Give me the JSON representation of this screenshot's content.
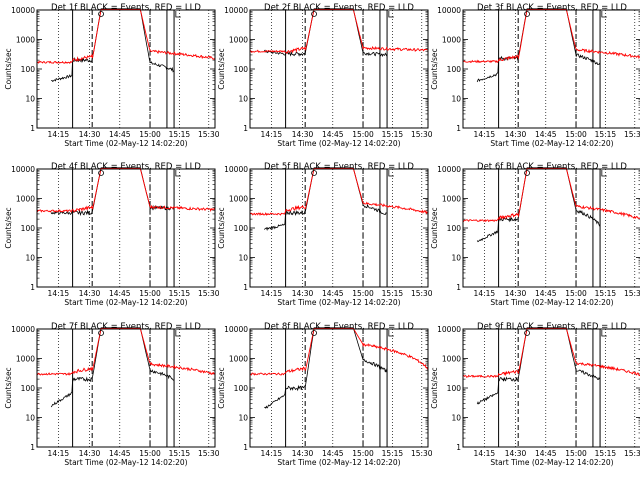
{
  "colors": {
    "events": "#000000",
    "lld": "#ff0000",
    "axis": "#000000"
  },
  "chart_data": [
    {
      "type": "line",
      "title": "Det 1f BLACK = Events, RED = LLD",
      "xlabel": "Start Time (02-May-12 14:02:20)",
      "ylabel": "Counts/sec",
      "yscale": "log",
      "ylim": [
        1,
        10000
      ],
      "xticks": [
        "14:15",
        "14:30",
        "14:45",
        "15:00",
        "15:15",
        "15:30"
      ],
      "yticks": [
        "1",
        "10",
        "100",
        "1000",
        "10000"
      ],
      "series": [
        {
          "key": "events",
          "type": "events"
        },
        {
          "key": "lld",
          "type": "lld"
        }
      ],
      "events": {
        "start": 40,
        "low": 60,
        "rise": 200,
        "high": 11000,
        "after": 160,
        "post_drop": 90
      },
      "lld": {
        "base": 170,
        "before": 200,
        "high": 10500,
        "after": 400,
        "tail": 230
      }
    },
    {
      "type": "line",
      "title": "Det 2f BLACK = Events, RED = LLD",
      "xlabel": "Start Time (02-May-12 14:02:20)",
      "ylabel": "Counts/sec",
      "yscale": "log",
      "ylim": [
        1,
        10000
      ],
      "xticks": [
        "14:15",
        "14:30",
        "14:45",
        "15:00",
        "15:15",
        "15:30"
      ],
      "yticks": [
        "1",
        "10",
        "100",
        "1000",
        "10000"
      ],
      "series": [
        {
          "key": "events",
          "type": "events"
        },
        {
          "key": "lld",
          "type": "lld"
        }
      ],
      "events": {
        "start": 400,
        "low": 320,
        "rise": 330,
        "high": 11000,
        "after": 350,
        "post_drop": 300
      },
      "lld": {
        "base": 400,
        "before": 380,
        "high": 10500,
        "after": 520,
        "tail": 430
      }
    },
    {
      "type": "line",
      "title": "Det 3f BLACK = Events, RED = LLD",
      "xlabel": "Start Time (02-May-12 14:02:20)",
      "ylabel": "Counts/sec",
      "yscale": "log",
      "ylim": [
        1,
        10000
      ],
      "xticks": [
        "14:15",
        "14:30",
        "14:45",
        "15:00",
        "15:15",
        "15:30"
      ],
      "yticks": [
        "1",
        "10",
        "100",
        "1000",
        "10000"
      ],
      "series": [
        {
          "key": "events",
          "type": "events"
        },
        {
          "key": "lld",
          "type": "lld"
        }
      ],
      "events": {
        "start": 40,
        "low": 70,
        "rise": 230,
        "high": 11000,
        "after": 300,
        "post_drop": 140
      },
      "lld": {
        "base": 180,
        "before": 200,
        "high": 10500,
        "after": 450,
        "tail": 250
      }
    },
    {
      "type": "line",
      "title": "Det 4f BLACK = Events, RED = LLD",
      "xlabel": "Start Time (02-May-12 14:02:20)",
      "ylabel": "Counts/sec",
      "yscale": "log",
      "ylim": [
        1,
        10000
      ],
      "xticks": [
        "14:15",
        "14:30",
        "14:45",
        "15:00",
        "15:15",
        "15:30"
      ],
      "yticks": [
        "1",
        "10",
        "100",
        "1000",
        "10000"
      ],
      "series": [
        {
          "key": "events",
          "type": "events"
        },
        {
          "key": "lld",
          "type": "lld"
        }
      ],
      "events": {
        "start": 330,
        "low": 320,
        "rise": 330,
        "high": 11000,
        "after": 500,
        "post_drop": 460
      },
      "lld": {
        "base": 380,
        "before": 380,
        "high": 10500,
        "after": 520,
        "tail": 420
      }
    },
    {
      "type": "line",
      "title": "Det 5f BLACK = Events, RED = LLD",
      "xlabel": "Start Time (02-May-12 14:02:20)",
      "ylabel": "Counts/sec",
      "yscale": "log",
      "ylim": [
        1,
        10000
      ],
      "xticks": [
        "14:15",
        "14:30",
        "14:45",
        "15:00",
        "15:15",
        "15:30"
      ],
      "yticks": [
        "1",
        "10",
        "100",
        "1000",
        "10000"
      ],
      "series": [
        {
          "key": "events",
          "type": "events"
        },
        {
          "key": "lld",
          "type": "lld"
        }
      ],
      "events": {
        "start": 90,
        "low": 130,
        "rise": 330,
        "high": 11000,
        "after": 600,
        "post_drop": 280
      },
      "lld": {
        "base": 300,
        "before": 400,
        "high": 10500,
        "after": 700,
        "tail": 330
      }
    },
    {
      "type": "line",
      "title": "Det 6f BLACK = Events, RED = LLD",
      "xlabel": "Start Time (02-May-12 14:02:20)",
      "ylabel": "Counts/sec",
      "yscale": "log",
      "ylim": [
        1,
        10000
      ],
      "xticks": [
        "14:15",
        "14:30",
        "14:45",
        "15:00",
        "15:15",
        "15:30"
      ],
      "yticks": [
        "1",
        "10",
        "100",
        "1000",
        "10000"
      ],
      "series": [
        {
          "key": "events",
          "type": "events"
        },
        {
          "key": "lld",
          "type": "lld"
        }
      ],
      "events": {
        "start": 35,
        "low": 80,
        "rise": 200,
        "high": 11000,
        "after": 400,
        "post_drop": 120
      },
      "lld": {
        "base": 180,
        "before": 220,
        "high": 10500,
        "after": 550,
        "tail": 200
      }
    },
    {
      "type": "line",
      "title": "Det 7f BLACK = Events, RED = LLD",
      "xlabel": "Start Time (02-May-12 14:02:20)",
      "ylabel": "Counts/sec",
      "yscale": "log",
      "ylim": [
        1,
        10000
      ],
      "xticks": [
        "14:15",
        "14:30",
        "14:45",
        "15:00",
        "15:15",
        "15:30"
      ],
      "yticks": [
        "1",
        "10",
        "100",
        "1000",
        "10000"
      ],
      "series": [
        {
          "key": "events",
          "type": "events"
        },
        {
          "key": "lld",
          "type": "lld"
        }
      ],
      "events": {
        "start": 25,
        "low": 70,
        "rise": 200,
        "high": 11000,
        "after": 400,
        "post_drop": 200
      },
      "lld": {
        "base": 300,
        "before": 350,
        "high": 10500,
        "after": 650,
        "tail": 300
      }
    },
    {
      "type": "line",
      "title": "Det 8f BLACK = Events, RED = LLD",
      "xlabel": "Start Time (02-May-12 14:02:20)",
      "ylabel": "Counts/sec",
      "yscale": "log",
      "ylim": [
        1,
        10000
      ],
      "xticks": [
        "14:15",
        "14:30",
        "14:45",
        "15:00",
        "15:15",
        "15:30"
      ],
      "yticks": [
        "1",
        "10",
        "100",
        "1000",
        "10000"
      ],
      "series": [
        {
          "key": "events",
          "type": "events"
        },
        {
          "key": "lld",
          "type": "lld"
        }
      ],
      "events": {
        "start": 20,
        "low": 60,
        "rise": 100,
        "high": 11000,
        "after": 900,
        "post_drop": 350
      },
      "lld": {
        "base": 300,
        "before": 350,
        "high": 10500,
        "after": 3000,
        "tail": 450
      }
    },
    {
      "type": "line",
      "title": "Det 9f BLACK = Events, RED = LLD",
      "xlabel": "Start Time (02-May-12 14:02:20)",
      "ylabel": "Counts/sec",
      "yscale": "log",
      "ylim": [
        1,
        10000
      ],
      "xticks": [
        "14:15",
        "14:30",
        "14:45",
        "15:00",
        "15:15",
        "15:30"
      ],
      "yticks": [
        "1",
        "10",
        "100",
        "1000",
        "10000"
      ],
      "series": [
        {
          "key": "events",
          "type": "events"
        },
        {
          "key": "lld",
          "type": "lld"
        }
      ],
      "events": {
        "start": 30,
        "low": 70,
        "rise": 200,
        "high": 11000,
        "after": 400,
        "post_drop": 190
      },
      "lld": {
        "base": 250,
        "before": 280,
        "high": 10500,
        "after": 700,
        "tail": 280
      }
    }
  ]
}
